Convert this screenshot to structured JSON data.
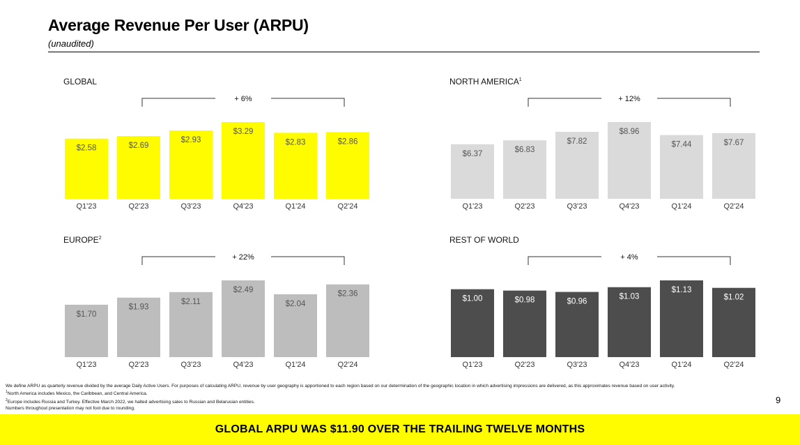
{
  "header": {
    "title": "Average Revenue Per User (ARPU)",
    "subtitle": "(unaudited)"
  },
  "chart_data": [
    {
      "type": "bar",
      "title": "GLOBAL",
      "footnote_marker": "",
      "categories": [
        "Q1'23",
        "Q2'23",
        "Q3'23",
        "Q4'23",
        "Q1'24",
        "Q2'24"
      ],
      "values": [
        2.58,
        2.69,
        2.93,
        3.29,
        2.83,
        2.86
      ],
      "labels": [
        "$2.58",
        "$2.69",
        "$2.93",
        "$3.29",
        "$2.83",
        "$2.86"
      ],
      "growth_label": "+ 6%",
      "bar_color": "#FFFC00",
      "label_color": "#555555"
    },
    {
      "type": "bar",
      "title": "NORTH AMERICA",
      "footnote_marker": "1",
      "categories": [
        "Q1'23",
        "Q2'23",
        "Q3'23",
        "Q4'23",
        "Q1'24",
        "Q2'24"
      ],
      "values": [
        6.37,
        6.83,
        7.82,
        8.96,
        7.44,
        7.67
      ],
      "labels": [
        "$6.37",
        "$6.83",
        "$7.82",
        "$8.96",
        "$7.44",
        "$7.67"
      ],
      "growth_label": "+ 12%",
      "bar_color": "#DADADA",
      "label_color": "#555555"
    },
    {
      "type": "bar",
      "title": "EUROPE",
      "footnote_marker": "2",
      "categories": [
        "Q1'23",
        "Q2'23",
        "Q3'23",
        "Q4'23",
        "Q1'24",
        "Q2'24"
      ],
      "values": [
        1.7,
        1.93,
        2.11,
        2.49,
        2.04,
        2.36
      ],
      "labels": [
        "$1.70",
        "$1.93",
        "$2.11",
        "$2.49",
        "$2.04",
        "$2.36"
      ],
      "growth_label": "+ 22%",
      "bar_color": "#BDBDBD",
      "label_color": "#555555"
    },
    {
      "type": "bar",
      "title": "REST OF WORLD",
      "footnote_marker": "",
      "categories": [
        "Q1'23",
        "Q2'23",
        "Q3'23",
        "Q4'23",
        "Q1'24",
        "Q2'24"
      ],
      "values": [
        1.0,
        0.98,
        0.96,
        1.03,
        1.13,
        1.02
      ],
      "labels": [
        "$1.00",
        "$0.98",
        "$0.96",
        "$1.03",
        "$1.13",
        "$1.02"
      ],
      "growth_label": "+ 4%",
      "bar_color": "#4D4D4D",
      "label_color": "#FFFFFF"
    }
  ],
  "footnotes": {
    "line1": "We define ARPU as quarterly revenue divided by the average Daily Active Users. For purposes of calculating ARPU, revenue by user geography is apportioned to each region based on our determination of the geographic location in which advertising impressions are delivered, as this approximates revenue based on user activity.",
    "marker2": "1",
    "line2": "North America includes Mexico, the Caribbean, and Central America.",
    "marker3": "2",
    "line3": "Europe includes Russia and Turkey. Effective March 2022, we halted advertising sales to Russian and Belarusian entities.",
    "line4": "Numbers throughout presentation may not foot due to rounding."
  },
  "page_number": "9",
  "banner": {
    "text": "GLOBAL ARPU WAS $11.90 OVER THE TRAILING TWELVE MONTHS",
    "color": "#FFFC00"
  }
}
